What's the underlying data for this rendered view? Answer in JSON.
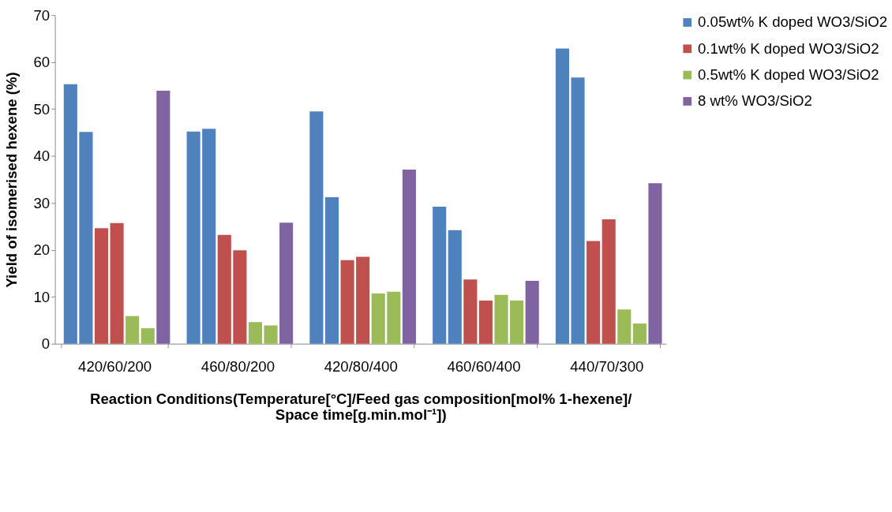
{
  "chart_data": {
    "type": "bar",
    "xlabel": "Reaction Conditions(Temperature[°C]/Feed gas composition[mol% 1-hexene]/\nSpace time[g.min.mol⁻¹])",
    "ylabel": "Yield of isomerised hexene (%)",
    "categories": [
      "420/60/200",
      "460/80/200",
      "420/80/400",
      "460/60/400",
      "440/70/300"
    ],
    "series": [
      {
        "name": "0.05wt% K doped WO3/SiO2",
        "color": "#4f81bd",
        "values": [
          55.3,
          45.2,
          49.5,
          29.2,
          62.9
        ]
      },
      {
        "color": "#4f81bd",
        "values": [
          45.1,
          45.8,
          31.2,
          24.2,
          56.7
        ]
      },
      {
        "name": "0.1wt% K doped WO3/SiO2",
        "color": "#c0504d",
        "values": [
          24.6,
          23.2,
          17.8,
          13.7,
          21.9
        ]
      },
      {
        "color": "#c0504d",
        "values": [
          25.7,
          19.9,
          18.5,
          9.2,
          26.5
        ]
      },
      {
        "name": "0.5wt% K doped WO3/SiO2",
        "color": "#9bbb59",
        "values": [
          5.9,
          4.6,
          10.7,
          10.4,
          7.3
        ]
      },
      {
        "color": "#9bbb59",
        "values": [
          3.3,
          3.9,
          11.1,
          9.2,
          4.3
        ]
      },
      {
        "name": "8 wt% WO3/SiO2",
        "color": "#8064a2",
        "values": [
          53.9,
          25.8,
          37.1,
          13.4,
          34.2
        ]
      }
    ],
    "ylim": [
      0,
      70
    ],
    "yticks": [
      0,
      10,
      20,
      30,
      40,
      50,
      60,
      70
    ],
    "grid": false,
    "legend": "top right"
  }
}
